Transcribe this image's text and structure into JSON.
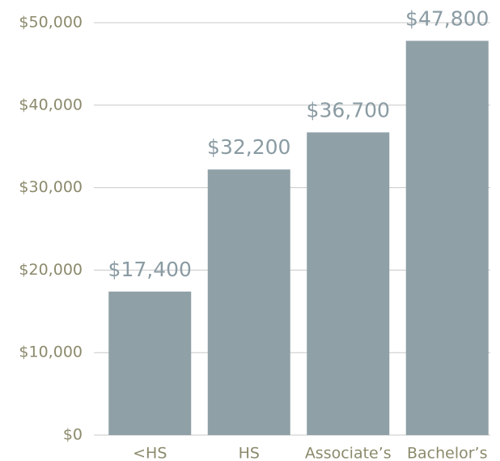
{
  "chart_data": {
    "type": "bar",
    "categories": [
      "<HS",
      "HS",
      "Associate’s",
      "Bachelor’s"
    ],
    "values": [
      17400,
      32200,
      36700,
      47800
    ],
    "value_labels": [
      "$17,400",
      "$32,200",
      "$36,700",
      "$47,800"
    ],
    "color": "#8fa0a6",
    "ylim": [
      0,
      50000
    ],
    "yticks": [
      {
        "value": 0,
        "label": "$0"
      },
      {
        "value": 10000,
        "label": "$10,000"
      },
      {
        "value": 20000,
        "label": "$20,000"
      },
      {
        "value": 30000,
        "label": "$30,000"
      },
      {
        "value": 40000,
        "label": "$40,000"
      },
      {
        "value": 50000,
        "label": "$50,000"
      }
    ],
    "grid": true
  }
}
